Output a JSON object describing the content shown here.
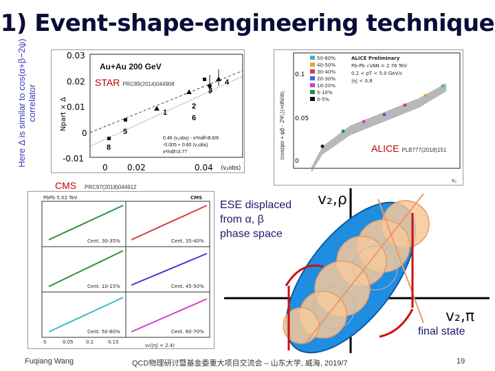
{
  "slide": {
    "title": "1) Event-shape-engineering technique",
    "side_note": "Here Δ is similar to cos(α+β−2ψ) correlator",
    "page_number": "19"
  },
  "star_plot": {
    "label": "STAR",
    "ref": "PRC89(2014)044908",
    "inner_title": "Au+Au 200 GeV",
    "ylabel": "Npart × Δ",
    "xlabel": "⟨v₂obs⟩",
    "y_ticks": [
      "0.03",
      "0.02",
      "0.01",
      "0",
      "-0.01"
    ],
    "x_ticks": [
      "0",
      "0.02",
      "0.04"
    ],
    "point_labels": [
      "3",
      "4",
      "2",
      "1",
      "5",
      "6",
      "8"
    ],
    "fit_line1": "0.46 (v₂obs) - x²/ndf=8.6/6",
    "fit_line2": "-0.005 + 0.60 (v₂obs)",
    "fit_line3": "x²/ndf=3.77"
  },
  "alice_plot": {
    "label": "ALICE",
    "ref": "PLB777(2018)151",
    "legend": [
      "50-60%",
      "40-50%",
      "30-40%",
      "20-30%",
      "10-20%",
      "5-10%",
      "0-5%"
    ],
    "info_lines": [
      "ALICE Preliminary",
      "Pb-Pb √sNN = 2.76 TeV",
      "0.2 < pT < 5.0 GeV/c",
      "|η| < 0.8"
    ],
    "ylabel": "⟨cos(φα + φβ - 2Ψ₂)⟩×dN/dη",
    "y_ticks": [
      "0.1",
      "0.05",
      "0"
    ],
    "x_axis_label": "v₂"
  },
  "cms_plot": {
    "label": "CMS",
    "ref": "PRC97(2018)044912",
    "header": "PbPb 5.02 TeV",
    "header_right": "CMS",
    "panels": [
      "Cent. 30-35%",
      "Cent. 35-40%",
      "Cent. 10-15%",
      "Cent. 45-50%",
      "Cent. 50-60%",
      "Cent. 60-70%"
    ],
    "xlabel": "v₂(|η| < 2.4)",
    "x_ticks": [
      "0",
      "0.05",
      "0.1",
      "0.15"
    ]
  },
  "diagram": {
    "text_lines": [
      "ESE displaced",
      "from α, β",
      "phase space"
    ],
    "v_rho": "v₂,ρ",
    "v_pi": "v₂,π",
    "final_state": "final state",
    "colors": {
      "ellipse": "#1f8de0",
      "circle_fill": "#f6c89a",
      "circle_edge": "#e89a6a",
      "red_line": "#cc1111"
    }
  },
  "footer": {
    "author": "Fuqiang Wang",
    "event": "QCD物理研讨暨基金委重大项目交流会 – 山东大学, 威海, 2019/7"
  }
}
